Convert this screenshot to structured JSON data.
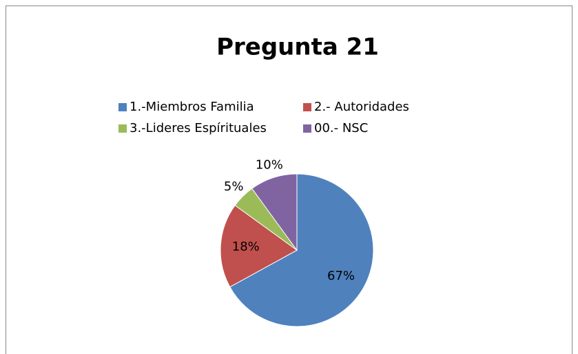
{
  "chart_data": {
    "type": "pie",
    "title": "Pregunta 21",
    "categories": [
      "1.-Miembros  Familia",
      "2.- Autoridades",
      "3.-Lideres Espírituales",
      "00.- NSC"
    ],
    "values": [
      67,
      18,
      5,
      10
    ],
    "value_labels": [
      "67%",
      "18%",
      "5%",
      "10%"
    ],
    "colors": [
      "#4f81bd",
      "#c0504d",
      "#9bbb59",
      "#8064a2"
    ],
    "legend": "top"
  }
}
